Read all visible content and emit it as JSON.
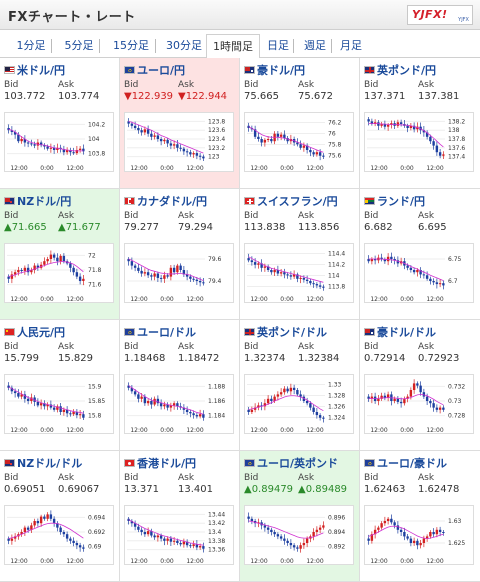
{
  "header": {
    "title": "FXチャート・レート",
    "logo_text": "YJFX!",
    "logo_sub": "YJFX"
  },
  "tabs": [
    {
      "label": "1分足",
      "active": false
    },
    {
      "label": "5分足",
      "active": false
    },
    {
      "label": "15分足",
      "active": false
    },
    {
      "label": "30分足",
      "active": false
    },
    {
      "label": "1時間足",
      "active": true
    },
    {
      "label": "日足",
      "active": false
    },
    {
      "label": "週足",
      "active": false
    },
    {
      "label": "月足",
      "active": false
    }
  ],
  "labels": {
    "bid": "Bid",
    "ask": "Ask"
  },
  "colors": {
    "up": "#2a8a2a",
    "down": "#d02020",
    "bull_candle": "#d32121",
    "bear_candle": "#1d3fa0",
    "ma_line": "#d030d0",
    "red_cell": "#fde2e2",
    "green_cell": "#e3f7e3"
  },
  "pairs": [
    {
      "name": "米ドル/円",
      "flag": "us",
      "bid": "103.772",
      "ask": "103.774",
      "trend": "none",
      "x_ticks": [
        "12:00",
        "0:00",
        "12:00"
      ],
      "y_ticks": [
        "104.2",
        "104",
        "103.8"
      ],
      "ylim": [
        103.7,
        104.3
      ],
      "path": [
        0.7,
        0.66,
        0.6,
        0.45,
        0.5,
        0.42,
        0.4,
        0.38,
        0.35,
        0.42,
        0.36,
        0.33,
        0.28,
        0.3,
        0.25,
        0.3,
        0.27,
        0.2,
        0.25,
        0.2,
        0.18,
        0.25,
        0.28,
        0.22
      ],
      "ma": [
        0.72,
        0.7,
        0.66,
        0.6,
        0.55,
        0.5,
        0.45,
        0.42,
        0.4,
        0.38,
        0.37,
        0.36,
        0.34,
        0.32,
        0.3,
        0.29,
        0.28,
        0.26,
        0.25,
        0.24,
        0.23,
        0.23,
        0.23,
        0.23
      ]
    },
    {
      "name": "ユーロ/円",
      "flag": "eu",
      "bid": "▼122.939",
      "ask": "▼122.944",
      "trend": "down",
      "x_ticks": [
        "12:00",
        "0:00",
        "12:00"
      ],
      "y_ticks": [
        "123.8",
        "123.6",
        "123.4",
        "123.2",
        "123"
      ],
      "ylim": [
        122.9,
        123.9
      ],
      "path": [
        0.85,
        0.8,
        0.75,
        0.7,
        0.65,
        0.72,
        0.62,
        0.55,
        0.58,
        0.5,
        0.45,
        0.48,
        0.4,
        0.35,
        0.38,
        0.3,
        0.28,
        0.22,
        0.2,
        0.15,
        0.18,
        0.12,
        0.1,
        0.06
      ],
      "ma": [
        0.9,
        0.88,
        0.85,
        0.82,
        0.79,
        0.76,
        0.73,
        0.7,
        0.66,
        0.62,
        0.58,
        0.55,
        0.52,
        0.48,
        0.45,
        0.42,
        0.39,
        0.36,
        0.33,
        0.3,
        0.27,
        0.24,
        0.21,
        0.18
      ]
    },
    {
      "name": "豪ドル/円",
      "flag": "au",
      "bid": "75.665",
      "ask": "75.672",
      "trend": "none",
      "x_ticks": [
        "12:00",
        "0:00",
        "12:00"
      ],
      "y_ticks": [
        "76.2",
        "76",
        "75.8",
        "75.6"
      ],
      "ylim": [
        75.5,
        76.3
      ],
      "path": [
        0.75,
        0.72,
        0.55,
        0.5,
        0.42,
        0.48,
        0.5,
        0.45,
        0.62,
        0.55,
        0.6,
        0.52,
        0.45,
        0.5,
        0.42,
        0.38,
        0.3,
        0.35,
        0.25,
        0.2,
        0.15,
        0.2,
        0.12,
        0.1
      ],
      "ma": [
        0.78,
        0.74,
        0.7,
        0.65,
        0.6,
        0.57,
        0.55,
        0.54,
        0.54,
        0.54,
        0.53,
        0.52,
        0.5,
        0.48,
        0.46,
        0.43,
        0.4,
        0.37,
        0.34,
        0.31,
        0.28,
        0.25,
        0.22,
        0.2
      ]
    },
    {
      "name": "英ポンド/円",
      "flag": "gb",
      "bid": "137.371",
      "ask": "137.381",
      "trend": "none",
      "x_ticks": [
        "12:00",
        "0:00",
        "12:00"
      ],
      "y_ticks": [
        "138.2",
        "138",
        "137.8",
        "137.6",
        "137.4"
      ],
      "ylim": [
        137.3,
        138.3
      ],
      "path": [
        0.9,
        0.85,
        0.88,
        0.8,
        0.84,
        0.78,
        0.82,
        0.86,
        0.8,
        0.88,
        0.84,
        0.8,
        0.75,
        0.8,
        0.72,
        0.78,
        0.7,
        0.65,
        0.55,
        0.45,
        0.35,
        0.2,
        0.12,
        0.15
      ],
      "ma": [
        0.85,
        0.85,
        0.85,
        0.85,
        0.84,
        0.84,
        0.83,
        0.83,
        0.83,
        0.83,
        0.82,
        0.82,
        0.81,
        0.8,
        0.78,
        0.76,
        0.73,
        0.69,
        0.64,
        0.58,
        0.52,
        0.45,
        0.38,
        0.32
      ]
    },
    {
      "name": "NZドル/円",
      "flag": "nz",
      "bid": "▲71.665",
      "ask": "▲71.677",
      "trend": "up",
      "x_ticks": [
        "12:00",
        "0:00",
        "12:00"
      ],
      "y_ticks": [
        "72",
        "71.8",
        "71.6"
      ],
      "ylim": [
        71.5,
        72.1
      ],
      "path": [
        0.3,
        0.4,
        0.45,
        0.5,
        0.48,
        0.55,
        0.45,
        0.5,
        0.6,
        0.55,
        0.62,
        0.7,
        0.75,
        0.85,
        0.78,
        0.7,
        0.82,
        0.7,
        0.65,
        0.55,
        0.45,
        0.35,
        0.25,
        0.3
      ],
      "ma": [
        0.35,
        0.37,
        0.39,
        0.42,
        0.44,
        0.46,
        0.48,
        0.5,
        0.52,
        0.55,
        0.58,
        0.6,
        0.63,
        0.65,
        0.67,
        0.68,
        0.69,
        0.69,
        0.68,
        0.66,
        0.63,
        0.58,
        0.52,
        0.46
      ]
    },
    {
      "name": "カナダドル/円",
      "flag": "ca",
      "bid": "79.277",
      "ask": "79.294",
      "trend": "none",
      "x_ticks": [
        "12:00",
        "0:00",
        "12:00"
      ],
      "y_ticks": [
        "79.6",
        "79.4"
      ],
      "ylim": [
        79.2,
        79.8
      ],
      "path": [
        0.7,
        0.6,
        0.55,
        0.48,
        0.42,
        0.45,
        0.38,
        0.35,
        0.42,
        0.32,
        0.3,
        0.38,
        0.35,
        0.55,
        0.45,
        0.6,
        0.5,
        0.4,
        0.35,
        0.3,
        0.28,
        0.25,
        0.22,
        0.2
      ],
      "ma": [
        0.75,
        0.72,
        0.68,
        0.64,
        0.6,
        0.56,
        0.52,
        0.49,
        0.47,
        0.45,
        0.43,
        0.42,
        0.41,
        0.41,
        0.41,
        0.42,
        0.42,
        0.41,
        0.4,
        0.38,
        0.35,
        0.32,
        0.29,
        0.26
      ]
    },
    {
      "name": "スイスフラン/円",
      "flag": "ch",
      "bid": "113.838",
      "ask": "113.856",
      "trend": "none",
      "x_ticks": [
        "12:00",
        "0:00",
        "12:00"
      ],
      "y_ticks": [
        "114.4",
        "114.2",
        "114",
        "113.8"
      ],
      "ylim": [
        113.7,
        114.5
      ],
      "path": [
        0.72,
        0.68,
        0.62,
        0.65,
        0.55,
        0.58,
        0.5,
        0.45,
        0.5,
        0.42,
        0.45,
        0.4,
        0.38,
        0.35,
        0.4,
        0.3,
        0.32,
        0.28,
        0.25,
        0.2,
        0.18,
        0.15,
        0.12,
        0.1
      ],
      "ma": [
        0.8,
        0.76,
        0.72,
        0.68,
        0.64,
        0.6,
        0.57,
        0.54,
        0.52,
        0.5,
        0.48,
        0.46,
        0.44,
        0.42,
        0.4,
        0.38,
        0.36,
        0.34,
        0.32,
        0.3,
        0.28,
        0.26,
        0.24,
        0.22
      ]
    },
    {
      "name": "ランド/円",
      "flag": "za",
      "bid": "6.682",
      "ask": "6.695",
      "trend": "none",
      "x_ticks": [
        "12:00",
        "0:00",
        "12:00"
      ],
      "y_ticks": [
        "6.75",
        "6.7"
      ],
      "ylim": [
        6.66,
        6.8
      ],
      "path": [
        0.7,
        0.75,
        0.72,
        0.78,
        0.74,
        0.7,
        0.8,
        0.75,
        0.72,
        0.65,
        0.7,
        0.6,
        0.55,
        0.5,
        0.45,
        0.5,
        0.4,
        0.38,
        0.3,
        0.25,
        0.22,
        0.18,
        0.2,
        0.15
      ],
      "ma": [
        0.75,
        0.75,
        0.75,
        0.75,
        0.75,
        0.74,
        0.74,
        0.73,
        0.72,
        0.7,
        0.68,
        0.65,
        0.62,
        0.58,
        0.55,
        0.52,
        0.48,
        0.45,
        0.42,
        0.38,
        0.35,
        0.32,
        0.29,
        0.26
      ]
    },
    {
      "name": "人民元/円",
      "flag": "cn",
      "bid": "15.799",
      "ask": "15.829",
      "trend": "none",
      "x_ticks": [
        "12:00",
        "0:00",
        "12:00"
      ],
      "y_ticks": [
        "15.9",
        "15.85",
        "15.8"
      ],
      "ylim": [
        15.78,
        15.94
      ],
      "path": [
        0.8,
        0.72,
        0.68,
        0.6,
        0.65,
        0.55,
        0.5,
        0.58,
        0.48,
        0.4,
        0.45,
        0.38,
        0.42,
        0.35,
        0.3,
        0.38,
        0.25,
        0.3,
        0.22,
        0.2,
        0.25,
        0.18,
        0.2,
        0.12
      ],
      "ma": [
        0.82,
        0.78,
        0.74,
        0.7,
        0.66,
        0.62,
        0.58,
        0.55,
        0.52,
        0.49,
        0.46,
        0.44,
        0.42,
        0.4,
        0.38,
        0.36,
        0.34,
        0.32,
        0.3,
        0.28,
        0.26,
        0.25,
        0.24,
        0.22
      ]
    },
    {
      "name": "ユーロ/ドル",
      "flag": "eu",
      "bid": "1.18468",
      "ask": "1.18472",
      "trend": "none",
      "x_ticks": [
        "12:00",
        "0:00",
        "12:00"
      ],
      "y_ticks": [
        "1.188",
        "1.186",
        "1.184"
      ],
      "ylim": [
        1.183,
        1.189
      ],
      "path": [
        0.8,
        0.72,
        0.65,
        0.55,
        0.6,
        0.45,
        0.5,
        0.42,
        0.55,
        0.45,
        0.38,
        0.42,
        0.35,
        0.4,
        0.45,
        0.38,
        0.35,
        0.3,
        0.25,
        0.22,
        0.18,
        0.15,
        0.2,
        0.12
      ],
      "ma": [
        0.85,
        0.8,
        0.75,
        0.7,
        0.65,
        0.6,
        0.56,
        0.52,
        0.5,
        0.48,
        0.46,
        0.44,
        0.42,
        0.4,
        0.39,
        0.38,
        0.36,
        0.34,
        0.32,
        0.3,
        0.27,
        0.24,
        0.22,
        0.2
      ]
    },
    {
      "name": "英ポンド/ドル",
      "flag": "gb",
      "bid": "1.32374",
      "ask": "1.32384",
      "trend": "none",
      "x_ticks": [
        "12:00",
        "0:00",
        "12:00"
      ],
      "y_ticks": [
        "1.33",
        "1.328",
        "1.326",
        "1.324"
      ],
      "ylim": [
        1.323,
        1.331
      ],
      "path": [
        0.25,
        0.3,
        0.35,
        0.4,
        0.38,
        0.45,
        0.55,
        0.5,
        0.6,
        0.65,
        0.7,
        0.78,
        0.72,
        0.8,
        0.75,
        0.65,
        0.6,
        0.5,
        0.45,
        0.35,
        0.25,
        0.18,
        0.12,
        0.1
      ],
      "ma": [
        0.3,
        0.32,
        0.34,
        0.36,
        0.38,
        0.4,
        0.43,
        0.46,
        0.5,
        0.53,
        0.56,
        0.59,
        0.61,
        0.62,
        0.62,
        0.61,
        0.59,
        0.56,
        0.52,
        0.47,
        0.42,
        0.37,
        0.32,
        0.28
      ]
    },
    {
      "name": "豪ドル/ドル",
      "flag": "au",
      "bid": "0.72914",
      "ask": "0.72923",
      "trend": "none",
      "x_ticks": [
        "12:00",
        "0:00",
        "12:00"
      ],
      "y_ticks": [
        "0.732",
        "0.73",
        "0.728"
      ],
      "ylim": [
        0.7275,
        0.7325
      ],
      "path": [
        0.55,
        0.6,
        0.5,
        0.55,
        0.62,
        0.58,
        0.65,
        0.5,
        0.55,
        0.48,
        0.45,
        0.55,
        0.6,
        0.75,
        0.9,
        0.85,
        0.7,
        0.6,
        0.5,
        0.45,
        0.35,
        0.3,
        0.35,
        0.3
      ],
      "ma": [
        0.55,
        0.56,
        0.56,
        0.56,
        0.57,
        0.57,
        0.58,
        0.57,
        0.57,
        0.56,
        0.55,
        0.55,
        0.56,
        0.58,
        0.61,
        0.64,
        0.65,
        0.64,
        0.62,
        0.58,
        0.54,
        0.49,
        0.45,
        0.41
      ]
    },
    {
      "name": "NZドル/ドル",
      "flag": "nz",
      "bid": "0.69051",
      "ask": "0.69067",
      "trend": "none",
      "x_ticks": [
        "12:00",
        "0:00",
        "12:00"
      ],
      "y_ticks": [
        "0.694",
        "0.692",
        "0.69"
      ],
      "ylim": [
        0.689,
        0.695
      ],
      "path": [
        0.3,
        0.35,
        0.4,
        0.45,
        0.5,
        0.6,
        0.55,
        0.65,
        0.75,
        0.7,
        0.85,
        0.8,
        0.9,
        0.8,
        0.7,
        0.6,
        0.5,
        0.45,
        0.35,
        0.3,
        0.25,
        0.2,
        0.15,
        0.12
      ],
      "ma": [
        0.35,
        0.37,
        0.39,
        0.42,
        0.45,
        0.48,
        0.52,
        0.55,
        0.58,
        0.61,
        0.64,
        0.67,
        0.69,
        0.7,
        0.7,
        0.69,
        0.67,
        0.64,
        0.6,
        0.56,
        0.51,
        0.46,
        0.41,
        0.36
      ]
    },
    {
      "name": "香港ドル/円",
      "flag": "hk",
      "bid": "13.371",
      "ask": "13.401",
      "trend": "none",
      "x_ticks": [
        "12:00",
        "0:00",
        "12:00"
      ],
      "y_ticks": [
        "13.44",
        "13.42",
        "13.4",
        "13.38",
        "13.36"
      ],
      "ylim": [
        13.35,
        13.45
      ],
      "path": [
        0.75,
        0.7,
        0.62,
        0.55,
        0.5,
        0.45,
        0.52,
        0.42,
        0.38,
        0.42,
        0.35,
        0.3,
        0.35,
        0.28,
        0.3,
        0.25,
        0.22,
        0.28,
        0.2,
        0.18,
        0.22,
        0.15,
        0.18,
        0.12
      ],
      "ma": [
        0.78,
        0.74,
        0.7,
        0.66,
        0.62,
        0.58,
        0.55,
        0.52,
        0.49,
        0.46,
        0.43,
        0.41,
        0.39,
        0.37,
        0.35,
        0.33,
        0.31,
        0.29,
        0.27,
        0.25,
        0.24,
        0.22,
        0.21,
        0.2
      ]
    },
    {
      "name": "ユーロ/英ポンド",
      "flag": "eu",
      "bid": "▲0.89479",
      "ask": "▲0.89489",
      "trend": "up",
      "x_ticks": [
        "12:00",
        "0:00",
        "12:00"
      ],
      "y_ticks": [
        "0.896",
        "0.894",
        "0.892"
      ],
      "ylim": [
        0.891,
        0.897
      ],
      "path": [
        0.8,
        0.75,
        0.7,
        0.72,
        0.65,
        0.6,
        0.55,
        0.5,
        0.45,
        0.4,
        0.35,
        0.3,
        0.25,
        0.2,
        0.15,
        0.12,
        0.2,
        0.25,
        0.35,
        0.4,
        0.5,
        0.55,
        0.6,
        0.65
      ],
      "ma": [
        0.75,
        0.74,
        0.72,
        0.7,
        0.68,
        0.66,
        0.64,
        0.62,
        0.6,
        0.57,
        0.54,
        0.51,
        0.48,
        0.45,
        0.42,
        0.39,
        0.37,
        0.36,
        0.36,
        0.37,
        0.39,
        0.42,
        0.45,
        0.48
      ]
    },
    {
      "name": "ユーロ/豪ドル",
      "flag": "eu",
      "bid": "1.62463",
      "ask": "1.62478",
      "trend": "none",
      "x_ticks": [
        "12:00",
        "0:00",
        "12:00"
      ],
      "y_ticks": [
        "1.63",
        "1.625"
      ],
      "ylim": [
        1.619,
        1.631
      ],
      "path": [
        0.3,
        0.45,
        0.55,
        0.6,
        0.7,
        0.75,
        0.8,
        0.72,
        0.65,
        0.55,
        0.5,
        0.4,
        0.35,
        0.25,
        0.3,
        0.2,
        0.25,
        0.35,
        0.4,
        0.5,
        0.45,
        0.55,
        0.5,
        0.48
      ],
      "ma": [
        0.4,
        0.43,
        0.46,
        0.5,
        0.54,
        0.58,
        0.61,
        0.63,
        0.63,
        0.62,
        0.6,
        0.57,
        0.53,
        0.49,
        0.45,
        0.41,
        0.38,
        0.36,
        0.35,
        0.36,
        0.38,
        0.4,
        0.43,
        0.45
      ]
    }
  ]
}
